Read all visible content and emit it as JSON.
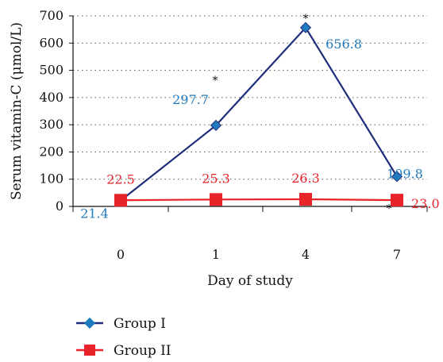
{
  "chart_data": {
    "type": "line",
    "categories": [
      "0",
      "1",
      "4",
      "7"
    ],
    "ylabel": "Serum vitamin-C (μmol/L)",
    "xlabel": "Day of study",
    "ylim": [
      0,
      700
    ],
    "yticks": [
      "0",
      "100",
      "200",
      "300",
      "400",
      "500",
      "600",
      "700"
    ],
    "grid": "horizontal dotted",
    "legend": "bottom-left",
    "series": [
      {
        "name": "Group I",
        "values": [
          21.4,
          297.7,
          656.8,
          109.8
        ],
        "labels": [
          "21.4",
          "297.7",
          "656.8",
          "109.8"
        ],
        "color": "#1f2d7a",
        "label_color": "#1f7bbf",
        "marker": "diamond",
        "significance": [
          "",
          "*",
          "*",
          "*"
        ]
      },
      {
        "name": "Group II",
        "values": [
          22.5,
          25.3,
          26.3,
          23.0
        ],
        "labels": [
          "22.5",
          "25.3",
          "26.3",
          "23.0"
        ],
        "color": "#e8232a",
        "label_color": "#e8232a",
        "marker": "square"
      }
    ]
  }
}
